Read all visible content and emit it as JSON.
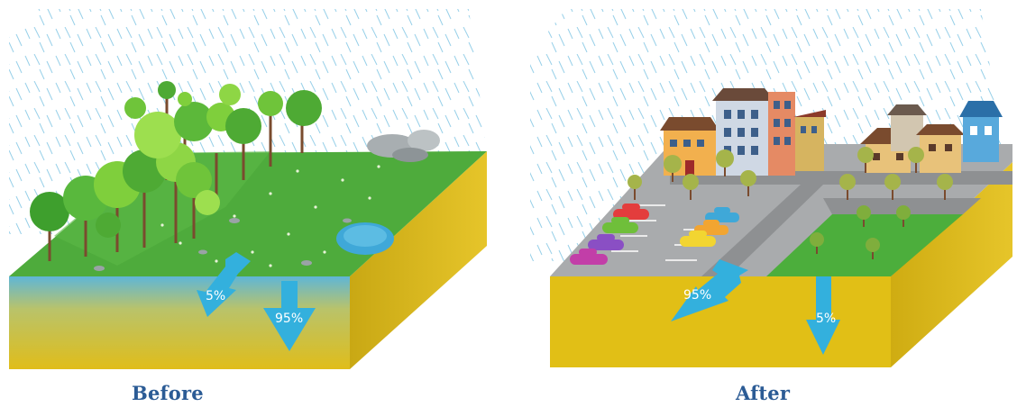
{
  "panels": {
    "before": {
      "caption": "Before",
      "runoff_label": "5%",
      "infiltration_label": "95%"
    },
    "after": {
      "caption": "After",
      "runoff_label": "95%",
      "infiltration_label": "5%"
    }
  },
  "colors": {
    "rain": "#7fc4e2",
    "grass": "#4cae3c",
    "soil": "#e2c11c",
    "water": "#3fa8d8",
    "arrow": "#33b0dd",
    "road": "#a6a8aa",
    "caption": "#2b5b95"
  }
}
